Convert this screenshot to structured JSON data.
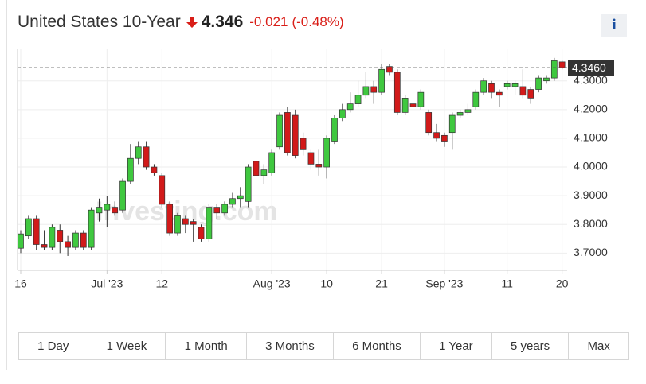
{
  "header": {
    "title": "United States 10-Year",
    "price": 4.346,
    "change": -0.021,
    "change_percent": "(-0.48%)",
    "info": "i"
  },
  "chart_data": {
    "type": "candlestick",
    "watermark": "Investing.com",
    "categories": [
      "16",
      null,
      null,
      null,
      null,
      null,
      null,
      null,
      null,
      null,
      null,
      "Jul '23",
      null,
      null,
      null,
      null,
      null,
      null,
      "12",
      null,
      null,
      null,
      null,
      null,
      null,
      null,
      null,
      null,
      null,
      null,
      null,
      null,
      "Aug '23",
      null,
      null,
      null,
      null,
      null,
      null,
      "10",
      null,
      null,
      null,
      null,
      null,
      null,
      "21",
      null,
      null,
      null,
      null,
      null,
      null,
      null,
      "Sep '23",
      null,
      null,
      null,
      null,
      null,
      null,
      null,
      "11",
      null,
      null,
      null,
      null,
      null,
      null,
      "20"
    ],
    "open": [
      3.717,
      3.76,
      3.82,
      3.73,
      3.72,
      3.78,
      3.74,
      3.72,
      3.77,
      3.72,
      3.84,
      3.85,
      3.86,
      3.85,
      3.95,
      4.03,
      4.07,
      4.0,
      3.97,
      3.87,
      3.77,
      3.82,
      3.81,
      3.79,
      3.75,
      3.86,
      3.84,
      3.87,
      3.89,
      3.88,
      4.02,
      3.97,
      3.98,
      4.07,
      4.19,
      4.18,
      4.1,
      4.05,
      4.01,
      4.0,
      4.09,
      4.17,
      4.2,
      4.22,
      4.25,
      4.28,
      4.26,
      4.35,
      4.33,
      4.19,
      4.22,
      4.21,
      4.19,
      4.12,
      4.11,
      4.12,
      4.18,
      4.19,
      4.21,
      4.26,
      4.29,
      4.26,
      4.28,
      4.28,
      4.28,
      4.27,
      4.27,
      4.3,
      4.31,
      4.366
    ],
    "high": [
      3.78,
      3.83,
      3.83,
      3.78,
      3.8,
      3.8,
      3.76,
      3.78,
      3.78,
      3.86,
      3.89,
      3.9,
      3.88,
      3.96,
      4.08,
      4.09,
      4.09,
      4.01,
      3.98,
      3.88,
      3.84,
      3.83,
      3.82,
      3.8,
      3.87,
      3.87,
      3.88,
      3.91,
      3.93,
      4.01,
      4.04,
      4.01,
      4.06,
      4.19,
      4.21,
      4.2,
      4.12,
      4.06,
      4.06,
      4.11,
      4.18,
      4.22,
      4.26,
      4.3,
      4.33,
      4.3,
      4.36,
      4.36,
      4.34,
      4.25,
      4.24,
      4.27,
      4.2,
      4.15,
      4.12,
      4.19,
      4.2,
      4.22,
      4.27,
      4.31,
      4.3,
      4.27,
      4.3,
      4.3,
      4.34,
      4.28,
      4.32,
      4.32,
      4.38,
      4.37
    ],
    "low": [
      3.7,
      3.75,
      3.71,
      3.71,
      3.71,
      3.7,
      3.69,
      3.71,
      3.71,
      3.71,
      3.81,
      3.79,
      3.83,
      3.84,
      3.94,
      4.01,
      3.99,
      3.97,
      3.86,
      3.76,
      3.76,
      3.77,
      3.74,
      3.74,
      3.74,
      3.82,
      3.83,
      3.86,
      3.86,
      3.86,
      3.96,
      3.94,
      3.97,
      4.06,
      4.04,
      4.03,
      4.04,
      3.99,
      3.97,
      3.96,
      4.08,
      4.16,
      4.19,
      4.21,
      4.24,
      4.22,
      4.25,
      4.32,
      4.18,
      4.18,
      4.19,
      4.2,
      4.11,
      4.09,
      4.07,
      4.06,
      4.17,
      4.18,
      4.2,
      4.25,
      4.24,
      4.21,
      4.27,
      4.25,
      4.24,
      4.22,
      4.26,
      4.29,
      4.3,
      4.34
    ],
    "close": [
      3.767,
      3.82,
      3.73,
      3.72,
      3.79,
      3.74,
      3.72,
      3.77,
      3.72,
      3.85,
      3.86,
      3.87,
      3.84,
      3.95,
      4.03,
      4.07,
      4.0,
      3.98,
      3.87,
      3.77,
      3.83,
      3.8,
      3.8,
      3.75,
      3.86,
      3.84,
      3.87,
      3.89,
      3.9,
      4.0,
      3.97,
      3.99,
      4.05,
      4.18,
      4.05,
      4.04,
      4.06,
      4.01,
      4.0,
      4.1,
      4.17,
      4.2,
      4.22,
      4.25,
      4.28,
      4.26,
      4.34,
      4.33,
      4.19,
      4.24,
      4.21,
      4.26,
      4.12,
      4.1,
      4.09,
      4.18,
      4.19,
      4.2,
      4.26,
      4.3,
      4.26,
      4.25,
      4.29,
      4.29,
      4.25,
      4.24,
      4.31,
      4.31,
      4.37,
      4.346
    ],
    "up_color": "#3fc83f",
    "down_color": "#d21a1a",
    "last_price": {
      "value": 4.346,
      "label": "4.3460"
    },
    "ylim": [
      3.64,
      4.41
    ],
    "yticks": [
      {
        "value": 3.7,
        "label": "3.7000"
      },
      {
        "value": 3.8,
        "label": "3.8000"
      },
      {
        "value": 3.9,
        "label": "3.9000"
      },
      {
        "value": 4.0,
        "label": "4.0000"
      },
      {
        "value": 4.1,
        "label": "4.1000"
      },
      {
        "value": 4.2,
        "label": "4.2000"
      },
      {
        "value": 4.3,
        "label": "4.3000"
      }
    ],
    "grid": true
  },
  "range_buttons": [
    "1 Day",
    "1 Week",
    "1 Month",
    "3 Months",
    "6 Months",
    "1 Year",
    "5 years",
    "Max"
  ]
}
